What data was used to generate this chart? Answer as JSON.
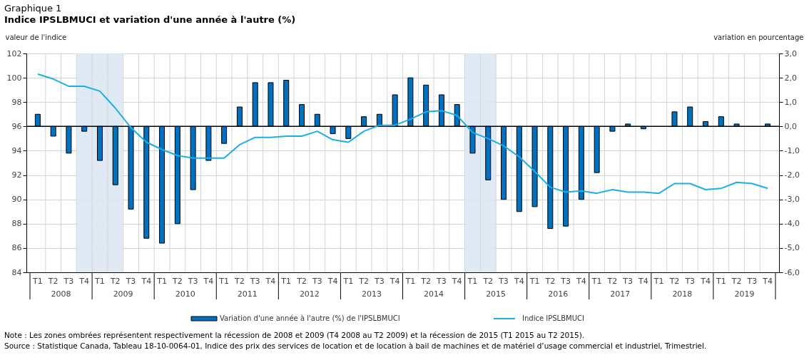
{
  "chart_data": {
    "type": "bar",
    "title": "Graphique 1",
    "subtitle": "Indice IPSLBMUCI et variation d'une année à l'autre (%)",
    "ylabel": "valeur de l'indice",
    "y2label": "variation en pourcentage",
    "categories": [
      "T1",
      "T2",
      "T3",
      "T4",
      "T1",
      "T2",
      "T3",
      "T4",
      "T1",
      "T2",
      "T3",
      "T4",
      "T1",
      "T2",
      "T3",
      "T4",
      "T1",
      "T2",
      "T3",
      "T4",
      "T1",
      "T2",
      "T3",
      "T4",
      "T1",
      "T2",
      "T3",
      "T4",
      "T1",
      "T2",
      "T3",
      "T4",
      "T1",
      "T2",
      "T3",
      "T4",
      "T1",
      "T2",
      "T3",
      "T4",
      "T1",
      "T2",
      "T3",
      "T4",
      "T1",
      "T2",
      "T3",
      "T4"
    ],
    "series": [
      {
        "name": "Variation d'une année à l'autre (%) de l'IPSLBMUCI",
        "axis": "y2",
        "color": "#0070c0",
        "values": [
          0.5,
          -0.4,
          -1.1,
          -0.2,
          -1.4,
          -2.4,
          -3.4,
          -4.6,
          -4.8,
          -4.0,
          -2.6,
          -1.4,
          -0.7,
          0.8,
          1.8,
          1.8,
          1.9,
          0.9,
          0.5,
          -0.3,
          -0.5,
          0.4,
          0.5,
          1.3,
          2.0,
          1.7,
          1.3,
          0.9,
          -1.1,
          -2.2,
          -3.0,
          -3.5,
          -3.3,
          -4.2,
          -4.1,
          -3.0,
          -1.9,
          -0.2,
          0.1,
          -0.1,
          null,
          0.6,
          0.8,
          0.2,
          0.4,
          0.1,
          null,
          0.1
        ]
      },
      {
        "name": "Indice IPSLBMUCI",
        "type": "line",
        "color": "#1aafe6",
        "values": [
          100.3,
          99.9,
          99.3,
          99.3,
          98.9,
          97.5,
          95.9,
          94.7,
          94.1,
          93.6,
          93.4,
          93.4,
          93.4,
          94.5,
          95.1,
          95.1,
          95.2,
          95.2,
          95.6,
          94.9,
          94.7,
          95.6,
          96.1,
          96.1,
          96.6,
          97.2,
          97.3,
          96.9,
          95.5,
          95.0,
          94.4,
          93.5,
          92.3,
          91.0,
          90.6,
          90.7,
          90.5,
          90.8,
          90.6,
          90.6,
          90.5,
          91.3,
          91.3,
          90.8,
          90.9,
          91.4,
          91.3,
          90.9
        ]
      }
    ],
    "ylim": [
      84,
      102
    ],
    "yticks": [
      84,
      86,
      88,
      90,
      92,
      94,
      96,
      98,
      100,
      102
    ],
    "y2lim": [
      -6,
      3
    ],
    "y2ticks": [
      {
        "value": -6,
        "label": "-6,0"
      },
      {
        "value": -5,
        "label": "-5,0"
      },
      {
        "value": -4,
        "label": "-4,0"
      },
      {
        "value": -3,
        "label": "-3,0"
      },
      {
        "value": -2,
        "label": "-2,0"
      },
      {
        "value": -1,
        "label": "-1,0"
      },
      {
        "value": 0,
        "label": "0,0"
      },
      {
        "value": 1,
        "label": "1,0"
      },
      {
        "value": 2,
        "label": "2,0"
      },
      {
        "value": 3,
        "label": "3,0"
      }
    ],
    "grid": true,
    "legend": "bottom",
    "annotations": [
      {
        "text": "2008"
      },
      {
        "text": "2009"
      },
      {
        "text": "2010"
      },
      {
        "text": "2011"
      },
      {
        "text": "2012"
      },
      {
        "text": "2013"
      },
      {
        "text": "2014"
      },
      {
        "text": "2015"
      },
      {
        "text": "2016"
      },
      {
        "text": "2017"
      },
      {
        "text": "2018"
      },
      {
        "text": "2019"
      },
      "Note : Les zones ombrées représentent respectivement la récession de 2008 et 2009 (T4 2008 au T2 2009) et la récession de 2015 (T1 2015 au T2 2015).",
      "Source : Statistique Canada, Tableau 18-10-0064-01, Indice des prix des services de location et de location à bail de machines et de matériel d’usage commercial et industriel, Trimestriel."
    ]
  }
}
